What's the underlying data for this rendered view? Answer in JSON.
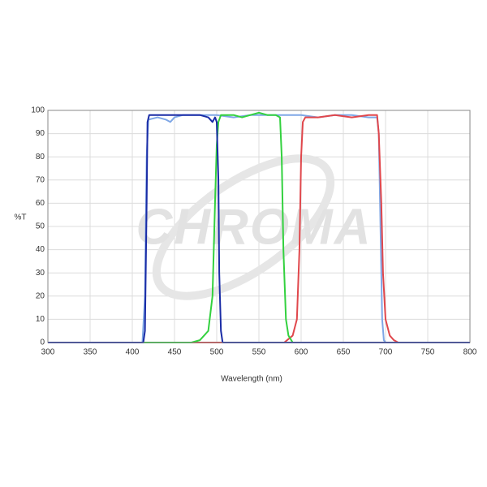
{
  "chart_data": {
    "type": "line",
    "watermark": "CHROMA",
    "xlabel": "Wavelength (nm)",
    "ylabel": "%T",
    "xlim": [
      300,
      800
    ],
    "xticks": [
      300,
      350,
      400,
      450,
      500,
      550,
      600,
      650,
      700,
      750,
      800
    ],
    "ylim": [
      0,
      100
    ],
    "yticks": [
      0,
      10,
      20,
      30,
      40,
      50,
      60,
      70,
      80,
      90,
      100
    ],
    "grid": true,
    "series": [
      {
        "color": "#7fa7e6",
        "x": [
          300,
          412,
          415,
          417,
          419,
          430,
          440,
          445,
          450,
          460,
          480,
          500,
          520,
          540,
          560,
          580,
          600,
          620,
          640,
          660,
          680,
          690,
          692,
          694,
          696,
          698,
          700,
          800
        ],
        "values": [
          0,
          0,
          20,
          80,
          96,
          97,
          96,
          95,
          97,
          98,
          98,
          98,
          97,
          98,
          98,
          98,
          98,
          97,
          98,
          98,
          97,
          97,
          90,
          50,
          10,
          1,
          0,
          0
        ]
      },
      {
        "color": "#e0474c",
        "x": [
          300,
          580,
          590,
          595,
          598,
          600,
          602,
          605,
          620,
          640,
          660,
          680,
          690,
          692,
          695,
          697,
          700,
          705,
          710,
          715,
          800
        ],
        "values": [
          0,
          0,
          3,
          10,
          40,
          80,
          95,
          97,
          97,
          98,
          97,
          98,
          98,
          90,
          60,
          30,
          10,
          3,
          1,
          0,
          0
        ]
      },
      {
        "color": "#33d13f",
        "x": [
          300,
          470,
          480,
          490,
          495,
          498,
          500,
          502,
          505,
          520,
          530,
          540,
          550,
          560,
          570,
          575,
          577,
          579,
          582,
          585,
          590,
          800
        ],
        "values": [
          0,
          0,
          1,
          5,
          20,
          60,
          85,
          95,
          98,
          98,
          97,
          98,
          99,
          98,
          98,
          97,
          80,
          40,
          10,
          3,
          0,
          0
        ]
      },
      {
        "color": "#1a2ca6",
        "x": [
          300,
          413,
          415,
          417,
          418,
          420,
          440,
          460,
          480,
          490,
          495,
          498,
          500,
          502,
          503,
          505,
          507,
          800
        ],
        "values": [
          0,
          0,
          5,
          60,
          95,
          98,
          98,
          98,
          98,
          97,
          95,
          97,
          95,
          70,
          30,
          5,
          0,
          0
        ]
      }
    ]
  }
}
